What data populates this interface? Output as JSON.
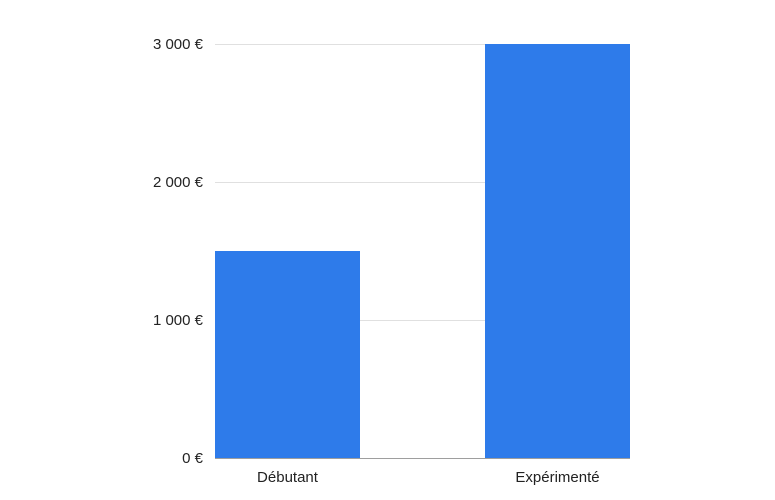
{
  "chart_data": {
    "type": "bar",
    "categories": [
      "Débutant",
      "Expérimenté"
    ],
    "values": [
      1500,
      3000
    ],
    "title": "",
    "xlabel": "",
    "ylabel": "",
    "ylim": [
      0,
      3000
    ],
    "yticks": [
      0,
      1000,
      2000,
      3000
    ],
    "ytick_labels": [
      "0 €",
      "1 000 €",
      "2 000 €",
      "3 000 €"
    ],
    "grid": true,
    "bar_color": "#2e7bea"
  }
}
